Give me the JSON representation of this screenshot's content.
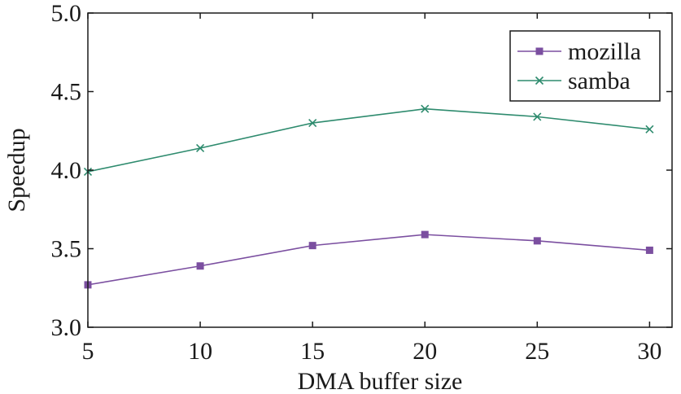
{
  "chart_data": {
    "type": "line",
    "xlabel": "DMA buffer size",
    "ylabel": "Speedup",
    "x": [
      5,
      10,
      15,
      20,
      25,
      30
    ],
    "xlim": [
      5,
      31
    ],
    "ylim": [
      3.0,
      5.0
    ],
    "xticks": [
      "5",
      "10",
      "15",
      "20",
      "25",
      "30"
    ],
    "yticks": [
      "3.0",
      "3.5",
      "4.0",
      "4.5",
      "5.0"
    ],
    "grid": false,
    "legend_position": "top-right",
    "series": [
      {
        "name": "mozilla",
        "values": [
          3.27,
          3.39,
          3.52,
          3.59,
          3.55,
          3.49
        ],
        "color": "#7b4fa0",
        "marker": "square"
      },
      {
        "name": "samba",
        "values": [
          3.99,
          4.14,
          4.3,
          4.39,
          4.34,
          4.26
        ],
        "color": "#2e8b6e",
        "marker": "x"
      }
    ]
  }
}
